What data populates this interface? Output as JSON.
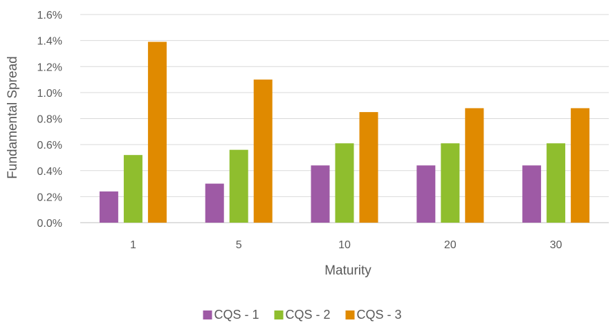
{
  "chart_data": {
    "type": "bar",
    "title": "",
    "xlabel": "Maturity",
    "ylabel": "Fundamental Spread",
    "categories": [
      "1",
      "5",
      "10",
      "20",
      "30"
    ],
    "series": [
      {
        "name": "CQS - 1",
        "color": "#9e5aa5",
        "values": [
          0.24,
          0.3,
          0.44,
          0.44,
          0.44
        ]
      },
      {
        "name": "CQS - 2",
        "color": "#8fbe2e",
        "values": [
          0.52,
          0.56,
          0.61,
          0.61,
          0.61
        ]
      },
      {
        "name": "CQS - 3",
        "color": "#e08a00",
        "values": [
          1.39,
          1.1,
          0.85,
          0.88,
          0.88
        ]
      }
    ],
    "ylim": [
      0,
      1.6
    ],
    "yticks": [
      "0.0%",
      "0.2%",
      "0.4%",
      "0.6%",
      "0.8%",
      "1.0%",
      "1.2%",
      "1.4%",
      "1.6%"
    ],
    "grid": true,
    "legend_position": "bottom"
  }
}
